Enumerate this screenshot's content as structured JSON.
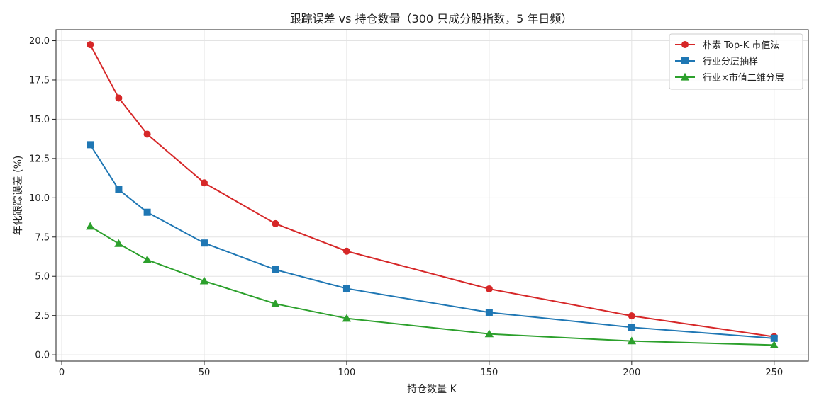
{
  "chart_data": {
    "type": "line",
    "title": "跟踪误差 vs 持仓数量（300 只成分股指数，5 年日频）",
    "xlabel": "持仓数量 K",
    "ylabel": "年化跟踪误差 (%)",
    "xlim": [
      -2,
      262
    ],
    "ylim": [
      -0.4,
      20.7
    ],
    "xticks": [
      0,
      50,
      100,
      150,
      200,
      250
    ],
    "yticks": [
      0.0,
      2.5,
      5.0,
      7.5,
      10.0,
      12.5,
      15.0,
      17.5,
      20.0
    ],
    "grid": true,
    "legend_position": "top-right",
    "x": [
      10,
      20,
      30,
      50,
      75,
      100,
      150,
      200,
      250
    ],
    "series": [
      {
        "name": "朴素 Top-K 市值法",
        "color": "#d62728",
        "marker": "circle",
        "values": [
          19.75,
          16.35,
          14.05,
          10.95,
          8.35,
          6.6,
          4.2,
          2.48,
          1.15
        ]
      },
      {
        "name": "行业分层抽样",
        "color": "#1f77b4",
        "marker": "square",
        "values": [
          13.38,
          10.52,
          9.08,
          7.12,
          5.42,
          4.22,
          2.7,
          1.75,
          1.05
        ]
      },
      {
        "name": "行业×市值二维分层",
        "color": "#2ca02c",
        "marker": "triangle",
        "values": [
          8.18,
          7.08,
          6.05,
          4.7,
          3.25,
          2.32,
          1.33,
          0.88,
          0.62
        ]
      }
    ]
  }
}
